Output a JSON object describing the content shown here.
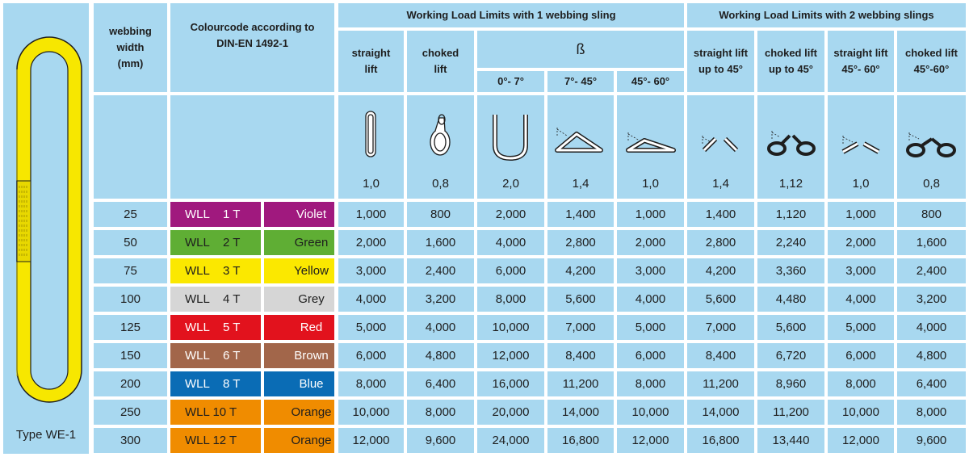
{
  "type_label": "Type WE-1",
  "headers": {
    "webbing_width": "webbing\nwidth\n(mm)",
    "colourcode": "Colourcode according to\nDIN-EN 1492-1",
    "wll_one": "Working Load Limits with 1 webbing sling",
    "wll_two": "Working Load Limits with 2 webbing slings",
    "straight_lift": "straight\nlift",
    "choked_lift": "choked\nlift",
    "beta": "ß",
    "angle_0_7": "0°- 7°",
    "angle_7_45": "7°- 45°",
    "angle_45_60": "45°- 60°",
    "straight_45": "straight lift\nup to 45°",
    "choked_45": "choked lift\nup to 45°",
    "straight_45_60": "straight lift\n45°- 60°",
    "choked_45_60": "choked lift\n45°-60°"
  },
  "factors": [
    "1,0",
    "0,8",
    "2,0",
    "1,4",
    "1,0",
    "1,4",
    "1,12",
    "1,0",
    "0,8"
  ],
  "rows": [
    {
      "width": "25",
      "wll": "WLL    1 T",
      "colour": "Violet",
      "bg": "#a0197e",
      "light": true,
      "values": [
        "1,000",
        "800",
        "2,000",
        "1,400",
        "1,000",
        "1,400",
        "1,120",
        "1,000",
        "800"
      ]
    },
    {
      "width": "50",
      "wll": "WLL    2 T",
      "colour": "Green",
      "bg": "#5fae34",
      "light": false,
      "values": [
        "2,000",
        "1,600",
        "4,000",
        "2,800",
        "2,000",
        "2,800",
        "2,240",
        "2,000",
        "1,600"
      ]
    },
    {
      "width": "75",
      "wll": "WLL    3 T",
      "colour": "Yellow",
      "bg": "#fbe800",
      "light": false,
      "values": [
        "3,000",
        "2,400",
        "6,000",
        "4,200",
        "3,000",
        "4,200",
        "3,360",
        "3,000",
        "2,400"
      ]
    },
    {
      "width": "100",
      "wll": "WLL    4 T",
      "colour": "Grey",
      "bg": "#d6d6d6",
      "light": false,
      "values": [
        "4,000",
        "3,200",
        "8,000",
        "5,600",
        "4,000",
        "5,600",
        "4,480",
        "4,000",
        "3,200"
      ]
    },
    {
      "width": "125",
      "wll": "WLL    5 T",
      "colour": "Red",
      "bg": "#e2121d",
      "light": true,
      "values": [
        "5,000",
        "4,000",
        "10,000",
        "7,000",
        "5,000",
        "7,000",
        "5,600",
        "5,000",
        "4,000"
      ]
    },
    {
      "width": "150",
      "wll": "WLL    6 T",
      "colour": "Brown",
      "bg": "#a2664a",
      "light": true,
      "values": [
        "6,000",
        "4,800",
        "12,000",
        "8,400",
        "6,000",
        "8,400",
        "6,720",
        "6,000",
        "4,800"
      ]
    },
    {
      "width": "200",
      "wll": "WLL    8 T",
      "colour": "Blue",
      "bg": "#0a6cb5",
      "light": true,
      "values": [
        "8,000",
        "6,400",
        "16,000",
        "11,200",
        "8,000",
        "11,200",
        "8,960",
        "8,000",
        "6,400"
      ]
    },
    {
      "width": "250",
      "wll": "WLL 10 T",
      "colour": "Orange",
      "bg": "#f08c00",
      "light": false,
      "values": [
        "10,000",
        "8,000",
        "20,000",
        "14,000",
        "10,000",
        "14,000",
        "11,200",
        "10,000",
        "8,000"
      ]
    },
    {
      "width": "300",
      "wll": "WLL 12 T",
      "colour": "Orange",
      "bg": "#f08c00",
      "light": false,
      "values": [
        "12,000",
        "9,600",
        "24,000",
        "16,800",
        "12,000",
        "16,800",
        "13,440",
        "12,000",
        "9,600"
      ]
    }
  ],
  "colors": {
    "cell_bg": "#a8d8f0",
    "sling_yellow": "#f7e700"
  },
  "icons": [
    "straight-lift-icon",
    "choked-lift-icon",
    "basket-0-7-icon",
    "basket-7-45-icon",
    "basket-45-60-icon",
    "two-straight-45-icon",
    "two-choked-45-icon",
    "two-straight-45-60-icon",
    "two-choked-45-60-icon"
  ]
}
